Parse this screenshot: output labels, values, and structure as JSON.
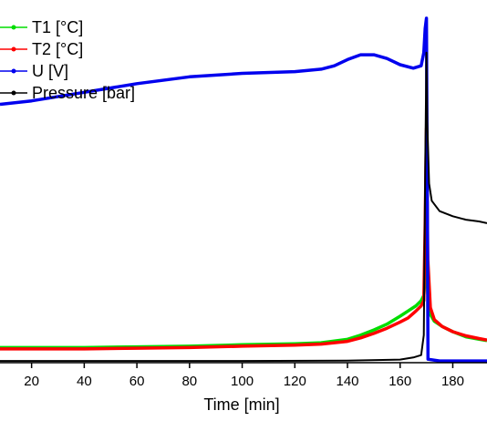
{
  "chart_data": {
    "type": "line",
    "xlabel": "Time [min]",
    "xlim": [
      8,
      193
    ],
    "x_ticks": [
      "20",
      "40",
      "60",
      "80",
      "100",
      "120",
      "140",
      "160",
      "180"
    ],
    "y_axis_visible": false,
    "grid": false,
    "legend_position": "top-left",
    "series": [
      {
        "name": "T1 [°C]",
        "color": "#00dd00",
        "points": [
          [
            8,
            0.044
          ],
          [
            20,
            0.044
          ],
          [
            40,
            0.044
          ],
          [
            60,
            0.046
          ],
          [
            80,
            0.048
          ],
          [
            100,
            0.052
          ],
          [
            120,
            0.055
          ],
          [
            130,
            0.058
          ],
          [
            140,
            0.068
          ],
          [
            145,
            0.08
          ],
          [
            150,
            0.095
          ],
          [
            155,
            0.112
          ],
          [
            160,
            0.135
          ],
          [
            163,
            0.15
          ],
          [
            166,
            0.165
          ],
          [
            168,
            0.18
          ],
          [
            169,
            0.195
          ],
          [
            169.5,
            0.25
          ],
          [
            170,
            0.3
          ],
          [
            170.5,
            0.2
          ],
          [
            171.5,
            0.14
          ],
          [
            173,
            0.12
          ],
          [
            176,
            0.105
          ],
          [
            180,
            0.09
          ],
          [
            185,
            0.075
          ],
          [
            190,
            0.068
          ],
          [
            193,
            0.064
          ]
        ]
      },
      {
        "name": "T2 [°C]",
        "color": "#ff0000",
        "points": [
          [
            8,
            0.04
          ],
          [
            20,
            0.04
          ],
          [
            40,
            0.04
          ],
          [
            60,
            0.042
          ],
          [
            80,
            0.044
          ],
          [
            100,
            0.048
          ],
          [
            120,
            0.051
          ],
          [
            130,
            0.054
          ],
          [
            140,
            0.062
          ],
          [
            145,
            0.072
          ],
          [
            150,
            0.085
          ],
          [
            155,
            0.1
          ],
          [
            160,
            0.118
          ],
          [
            163,
            0.13
          ],
          [
            166,
            0.15
          ],
          [
            168,
            0.165
          ],
          [
            169,
            0.18
          ],
          [
            169.5,
            0.4
          ],
          [
            170,
            0.68
          ],
          [
            170.5,
            0.3
          ],
          [
            171.5,
            0.16
          ],
          [
            173,
            0.125
          ],
          [
            176,
            0.105
          ],
          [
            180,
            0.09
          ],
          [
            185,
            0.078
          ],
          [
            190,
            0.07
          ],
          [
            193,
            0.066
          ]
        ]
      },
      {
        "name": "U [V]",
        "color": "#0000ee",
        "points": [
          [
            8,
            0.75
          ],
          [
            20,
            0.76
          ],
          [
            40,
            0.785
          ],
          [
            60,
            0.81
          ],
          [
            80,
            0.83
          ],
          [
            100,
            0.84
          ],
          [
            120,
            0.845
          ],
          [
            130,
            0.852
          ],
          [
            135,
            0.862
          ],
          [
            140,
            0.88
          ],
          [
            145,
            0.894
          ],
          [
            150,
            0.894
          ],
          [
            155,
            0.883
          ],
          [
            160,
            0.865
          ],
          [
            165,
            0.855
          ],
          [
            168,
            0.862
          ],
          [
            169,
            0.9
          ],
          [
            169.5,
            0.97
          ],
          [
            170,
            1.0
          ],
          [
            170.3,
            0.5
          ],
          [
            170.6,
            0.01
          ],
          [
            175,
            0.005
          ],
          [
            193,
            0.005
          ]
        ]
      },
      {
        "name": "Pressure [bar]",
        "color": "#000000",
        "points": [
          [
            8,
            0.005
          ],
          [
            100,
            0.005
          ],
          [
            140,
            0.006
          ],
          [
            160,
            0.009
          ],
          [
            165,
            0.015
          ],
          [
            168,
            0.022
          ],
          [
            169,
            0.08
          ],
          [
            169.5,
            0.55
          ],
          [
            170,
            0.9
          ],
          [
            170.3,
            0.7
          ],
          [
            171,
            0.52
          ],
          [
            172,
            0.47
          ],
          [
            175,
            0.44
          ],
          [
            180,
            0.425
          ],
          [
            185,
            0.415
          ],
          [
            190,
            0.41
          ],
          [
            193,
            0.405
          ]
        ]
      }
    ]
  }
}
